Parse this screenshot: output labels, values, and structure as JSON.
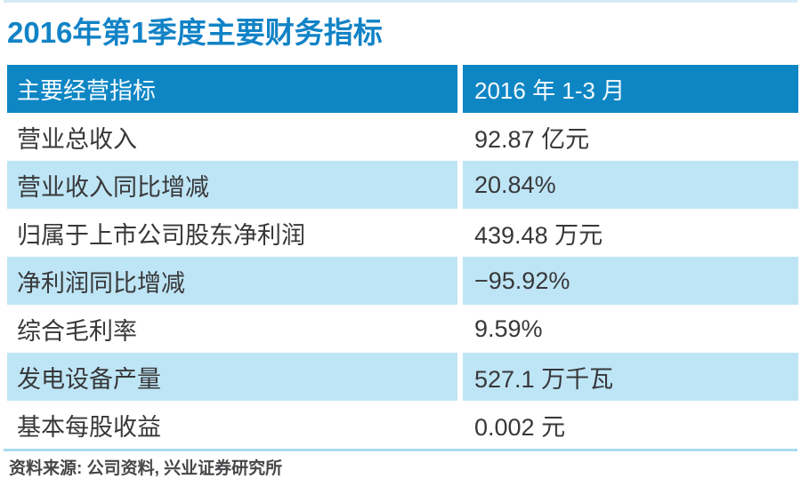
{
  "title": "2016年第1季度主要财务指标",
  "table": {
    "header": {
      "label": "主要经营指标",
      "value": "2016 年 1-3 月"
    },
    "rows": [
      {
        "label": "营业总收入",
        "value": "92.87 亿元"
      },
      {
        "label": "营业收入同比增减",
        "value": "20.84%"
      },
      {
        "label": "归属于上市公司股东净利润",
        "value": "439.48 万元"
      },
      {
        "label": "净利润同比增减",
        "value": "−95.92%"
      },
      {
        "label": "综合毛利率",
        "value": "9.59%"
      },
      {
        "label": "发电设备产量",
        "value": "527.1 万千瓦"
      },
      {
        "label": "基本每股收益",
        "value": "0.002 元"
      }
    ]
  },
  "source": "资料来源: 公司资料, 兴业证券研究所",
  "colors": {
    "title_blue": "#1283c6",
    "header_bg": "#0e86c4",
    "row_alt_bg": "#bee5f5",
    "top_line": "#d7ebf8",
    "separator_line": "#a9dcf1",
    "body_text": "#38383a",
    "source_text": "#47474a"
  },
  "chart_data": {
    "type": "table",
    "title": "2016年第1季度主要财务指标",
    "columns": [
      "主要经营指标",
      "2016 年 1-3 月"
    ],
    "rows": [
      [
        "营业总收入",
        "92.87 亿元"
      ],
      [
        "营业收入同比增减",
        "20.84%"
      ],
      [
        "归属于上市公司股东净利润",
        "439.48 万元"
      ],
      [
        "净利润同比增减",
        "−95.92%"
      ],
      [
        "综合毛利率",
        "9.59%"
      ],
      [
        "发电设备产量",
        "527.1 万千瓦"
      ],
      [
        "基本每股收益",
        "0.002 元"
      ]
    ],
    "source": "资料来源: 公司资料, 兴业证券研究所",
    "layout": {
      "zebra_striping": true,
      "header_position": "top-row",
      "gridlines": "column-gutter-only"
    }
  }
}
